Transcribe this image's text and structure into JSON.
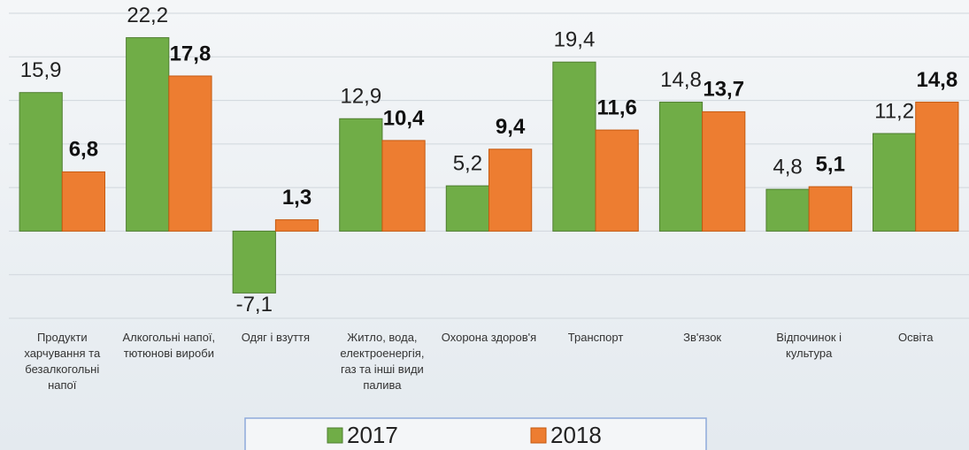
{
  "chart_data": {
    "type": "bar",
    "categories": [
      "Продукти харчування та безалкогольні напої",
      "Алкогольні напої, тютюнові вироби",
      "Одяг і взуття",
      "Житло, вода, електроенергія, газ та інші види палива",
      "Охорона здоров'я",
      "Транспорт",
      "Зв'язок",
      "Відпочинок і культура",
      "Освіта"
    ],
    "series": [
      {
        "name": "2017",
        "color": "#70ad47",
        "values": [
          15.9,
          22.2,
          -7.1,
          12.9,
          5.2,
          19.4,
          14.8,
          4.8,
          11.2
        ],
        "value_labels": [
          "15,9",
          "22,2",
          "-7,1",
          "12,9",
          "5,2",
          "19,4",
          "14,8",
          "4,8",
          "11,2"
        ]
      },
      {
        "name": "2018",
        "color": "#ed7d31",
        "values": [
          6.8,
          17.8,
          1.3,
          10.4,
          9.4,
          11.6,
          13.7,
          5.1,
          14.8
        ],
        "value_labels": [
          "6,8",
          "17,8",
          "1,3",
          "10,4",
          "9,4",
          "11,6",
          "13,7",
          "5,1",
          "14,8"
        ]
      }
    ],
    "ylim": [
      -10,
      25
    ],
    "yticks": [
      -10,
      -5,
      0,
      5,
      10,
      15,
      20,
      25
    ],
    "grid": true,
    "legend": "bottom"
  }
}
